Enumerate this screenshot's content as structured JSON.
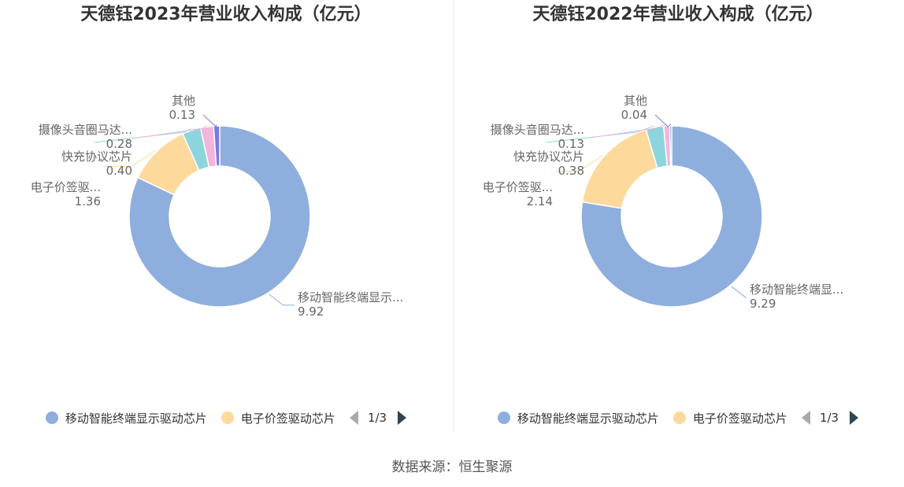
{
  "chart_data": [
    {
      "type": "pie",
      "style": "donut",
      "title": "天德钰2023年营业收入构成（亿元）",
      "categories": [
        "移动智能终端显示驱动芯片",
        "电子价签驱动芯片",
        "快充协议芯片",
        "摄像头音圈马达驱动芯片",
        "其他"
      ],
      "short_labels": [
        "移动智能终端显示...",
        "电子价签驱...",
        "快充协议芯片",
        "摄像头音圈马达...",
        "其他"
      ],
      "values": [
        9.92,
        1.36,
        0.4,
        0.28,
        0.13
      ],
      "value_labels": [
        "9.92",
        "1.36",
        "0.40",
        "0.28",
        "0.13"
      ],
      "legend": {
        "items": [
          "移动智能终端显示驱动芯片",
          "电子价签驱动芯片"
        ],
        "page": "1/3",
        "position": "bottom"
      }
    },
    {
      "type": "pie",
      "style": "donut",
      "title": "天德钰2022年营业收入构成（亿元）",
      "categories": [
        "移动智能终端显示驱动芯片",
        "电子价签驱动芯片",
        "快充协议芯片",
        "摄像头音圈马达驱动芯片",
        "其他"
      ],
      "short_labels": [
        "移动智能终端显...",
        "电子价签驱...",
        "快充协议芯片",
        "摄像头音圈马达...",
        "其他"
      ],
      "values": [
        9.29,
        2.14,
        0.38,
        0.13,
        0.04
      ],
      "value_labels": [
        "9.29",
        "2.14",
        "0.38",
        "0.13",
        "0.04"
      ],
      "legend": {
        "items": [
          "移动智能终端显示驱动芯片",
          "电子价签驱动芯片"
        ],
        "page": "1/3",
        "position": "bottom"
      }
    }
  ],
  "colors": [
    "#8eaede",
    "#fdd99b",
    "#8dd5dd",
    "#f2b5dc",
    "#7a7bde"
  ],
  "source": "数据来源：恒生聚源"
}
